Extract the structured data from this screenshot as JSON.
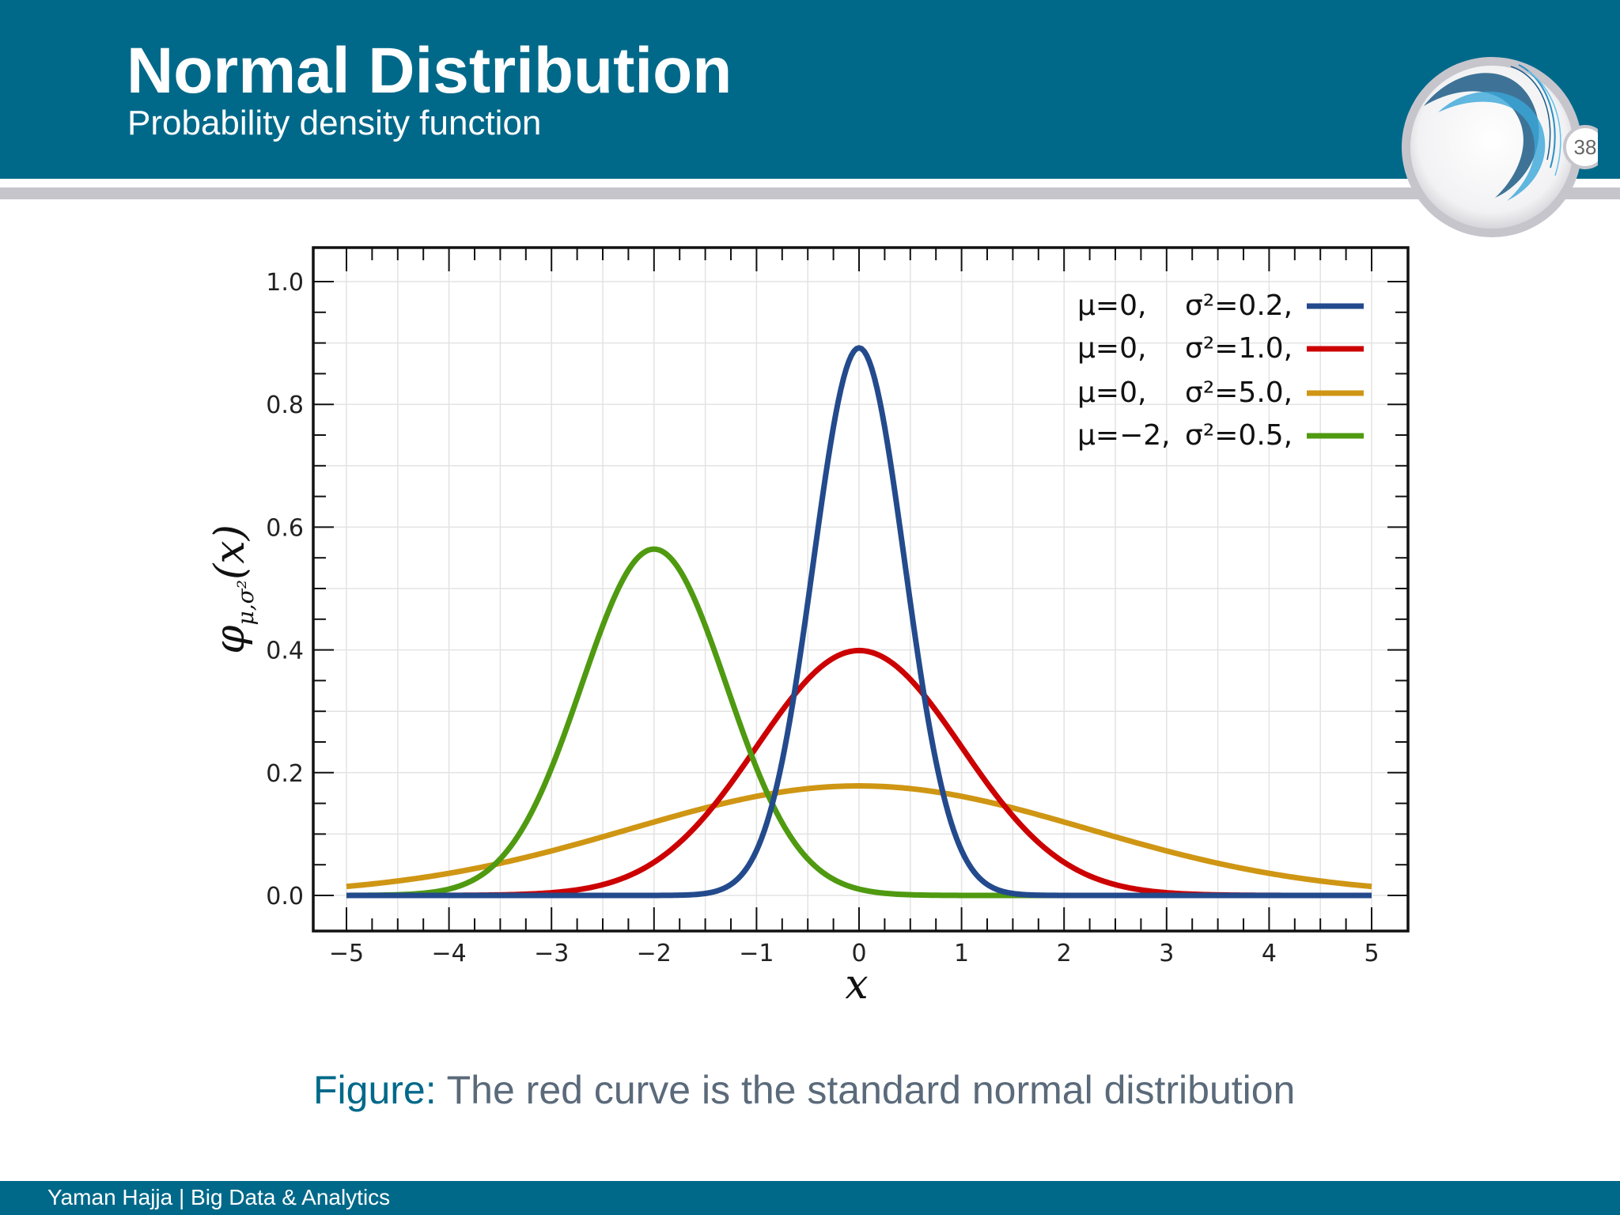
{
  "slide": {
    "title": "Normal Distribution",
    "subtitle": "Probability density function",
    "page_number": "38",
    "caption_label": "Figure:",
    "caption_text": " The red curve is the standard normal distribution",
    "footer": "Yaman Hajja | Big Data & Analytics"
  },
  "colors": {
    "header_bg": "#00698a",
    "rule_grey": "#c7c5cc"
  },
  "chart_data": {
    "type": "line",
    "xlabel": "x",
    "ylabel": "φμ,σ²(x)",
    "ylabel_symbol": "φ",
    "ylabel_subscript": "μ,σ²",
    "ylabel_arg": "(x)",
    "xlim": [
      -5,
      5
    ],
    "ylim": [
      0,
      1.0
    ],
    "x_ticks": [
      -5,
      -4,
      -3,
      -2,
      -1,
      0,
      1,
      2,
      3,
      4,
      5
    ],
    "x_tick_labels": [
      "−5",
      "−4",
      "−3",
      "−2",
      "−1",
      "0",
      "1",
      "2",
      "3",
      "4",
      "5"
    ],
    "y_ticks": [
      0.0,
      0.2,
      0.4,
      0.6,
      0.8,
      1.0
    ],
    "y_tick_labels": [
      "0.0",
      "0.2",
      "0.4",
      "0.6",
      "0.8",
      "1.0"
    ],
    "grid": true,
    "legend_position": "top-right",
    "series": [
      {
        "mu_label": "μ=0,",
        "sigma_label": "σ²=0.2,",
        "mu": 0,
        "variance": 0.2,
        "color": "#234a8c"
      },
      {
        "mu_label": "μ=0,",
        "sigma_label": "σ²=1.0,",
        "mu": 0,
        "variance": 1.0,
        "color": "#cc0000"
      },
      {
        "mu_label": "μ=0,",
        "sigma_label": "σ²=5.0,",
        "mu": 0,
        "variance": 5.0,
        "color": "#cf9614"
      },
      {
        "mu_label": "μ=−2,",
        "sigma_label": "σ²=0.5,",
        "mu": -2,
        "variance": 0.5,
        "color": "#4f9a10"
      }
    ]
  }
}
